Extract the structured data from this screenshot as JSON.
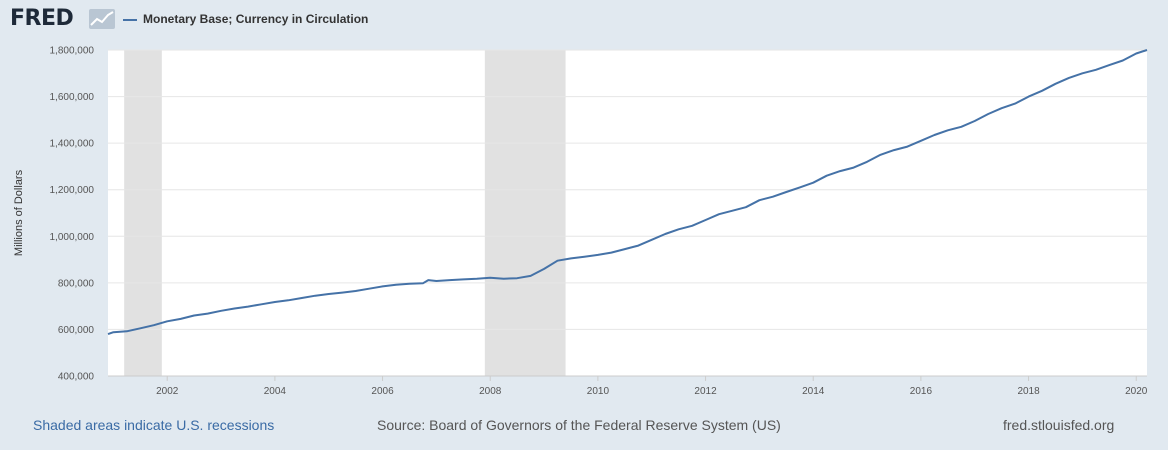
{
  "header": {
    "logo_text": "FRED",
    "logo_icon": "line-graph-icon",
    "legend_label": "Monetary Base; Currency in Circulation"
  },
  "footer": {
    "recession_note": "Shaded areas indicate U.S. recessions",
    "source": "Source: Board of Governors of the Federal Reserve System (US)",
    "site": "fred.stlouisfed.org"
  },
  "colors": {
    "series": "#4572a7",
    "recession": "#e1e1e1",
    "background": "#e1e9f0",
    "plot": "#ffffff",
    "link": "#3a6ba5"
  },
  "chart_data": {
    "type": "line",
    "title": "",
    "xlabel": "",
    "ylabel": "Millions of Dollars",
    "xlim": [
      2000.9,
      2020.2
    ],
    "ylim": [
      400000,
      1800000
    ],
    "x_ticks": [
      2002,
      2004,
      2006,
      2008,
      2010,
      2012,
      2014,
      2016,
      2018,
      2020
    ],
    "x_tick_labels": [
      "2002",
      "2004",
      "2006",
      "2008",
      "2010",
      "2012",
      "2014",
      "2016",
      "2018",
      "2020"
    ],
    "y_ticks": [
      400000,
      600000,
      800000,
      1000000,
      1200000,
      1400000,
      1600000,
      1800000
    ],
    "y_tick_labels": [
      "400,000",
      "600,000",
      "800,000",
      "1,000,000",
      "1,200,000",
      "1,400,000",
      "1,600,000",
      "1,800,000"
    ],
    "grid": true,
    "legend": "top-left",
    "recessions": [
      {
        "start": 2001.2,
        "end": 2001.9
      },
      {
        "start": 2007.9,
        "end": 2009.4
      }
    ],
    "series": [
      {
        "name": "Monetary Base; Currency in Circulation",
        "x": [
          2000.9,
          2001.0,
          2001.25,
          2001.5,
          2001.75,
          2002.0,
          2002.25,
          2002.5,
          2002.75,
          2003.0,
          2003.25,
          2003.5,
          2003.75,
          2004.0,
          2004.25,
          2004.5,
          2004.75,
          2005.0,
          2005.25,
          2005.5,
          2005.75,
          2006.0,
          2006.25,
          2006.5,
          2006.75,
          2006.85,
          2007.0,
          2007.25,
          2007.5,
          2007.75,
          2008.0,
          2008.25,
          2008.5,
          2008.75,
          2009.0,
          2009.25,
          2009.5,
          2009.75,
          2010.0,
          2010.25,
          2010.5,
          2010.75,
          2011.0,
          2011.25,
          2011.5,
          2011.75,
          2012.0,
          2012.25,
          2012.5,
          2012.75,
          2013.0,
          2013.25,
          2013.5,
          2013.75,
          2014.0,
          2014.25,
          2014.5,
          2014.75,
          2015.0,
          2015.25,
          2015.5,
          2015.75,
          2016.0,
          2016.25,
          2016.5,
          2016.75,
          2017.0,
          2017.25,
          2017.5,
          2017.75,
          2018.0,
          2018.25,
          2018.5,
          2018.75,
          2019.0,
          2019.25,
          2019.5,
          2019.75,
          2020.0,
          2020.2
        ],
        "values": [
          580000,
          588000,
          592000,
          605000,
          618000,
          635000,
          645000,
          660000,
          668000,
          680000,
          690000,
          698000,
          708000,
          718000,
          725000,
          735000,
          745000,
          752000,
          758000,
          765000,
          775000,
          785000,
          792000,
          796000,
          798000,
          812000,
          808000,
          812000,
          815000,
          818000,
          822000,
          818000,
          820000,
          830000,
          860000,
          895000,
          905000,
          912000,
          920000,
          930000,
          945000,
          960000,
          985000,
          1010000,
          1030000,
          1045000,
          1070000,
          1095000,
          1110000,
          1125000,
          1155000,
          1170000,
          1190000,
          1210000,
          1230000,
          1260000,
          1280000,
          1295000,
          1320000,
          1350000,
          1370000,
          1385000,
          1410000,
          1435000,
          1455000,
          1470000,
          1495000,
          1525000,
          1550000,
          1570000,
          1600000,
          1625000,
          1655000,
          1680000,
          1700000,
          1715000,
          1735000,
          1755000,
          1785000,
          1800000
        ]
      }
    ]
  }
}
